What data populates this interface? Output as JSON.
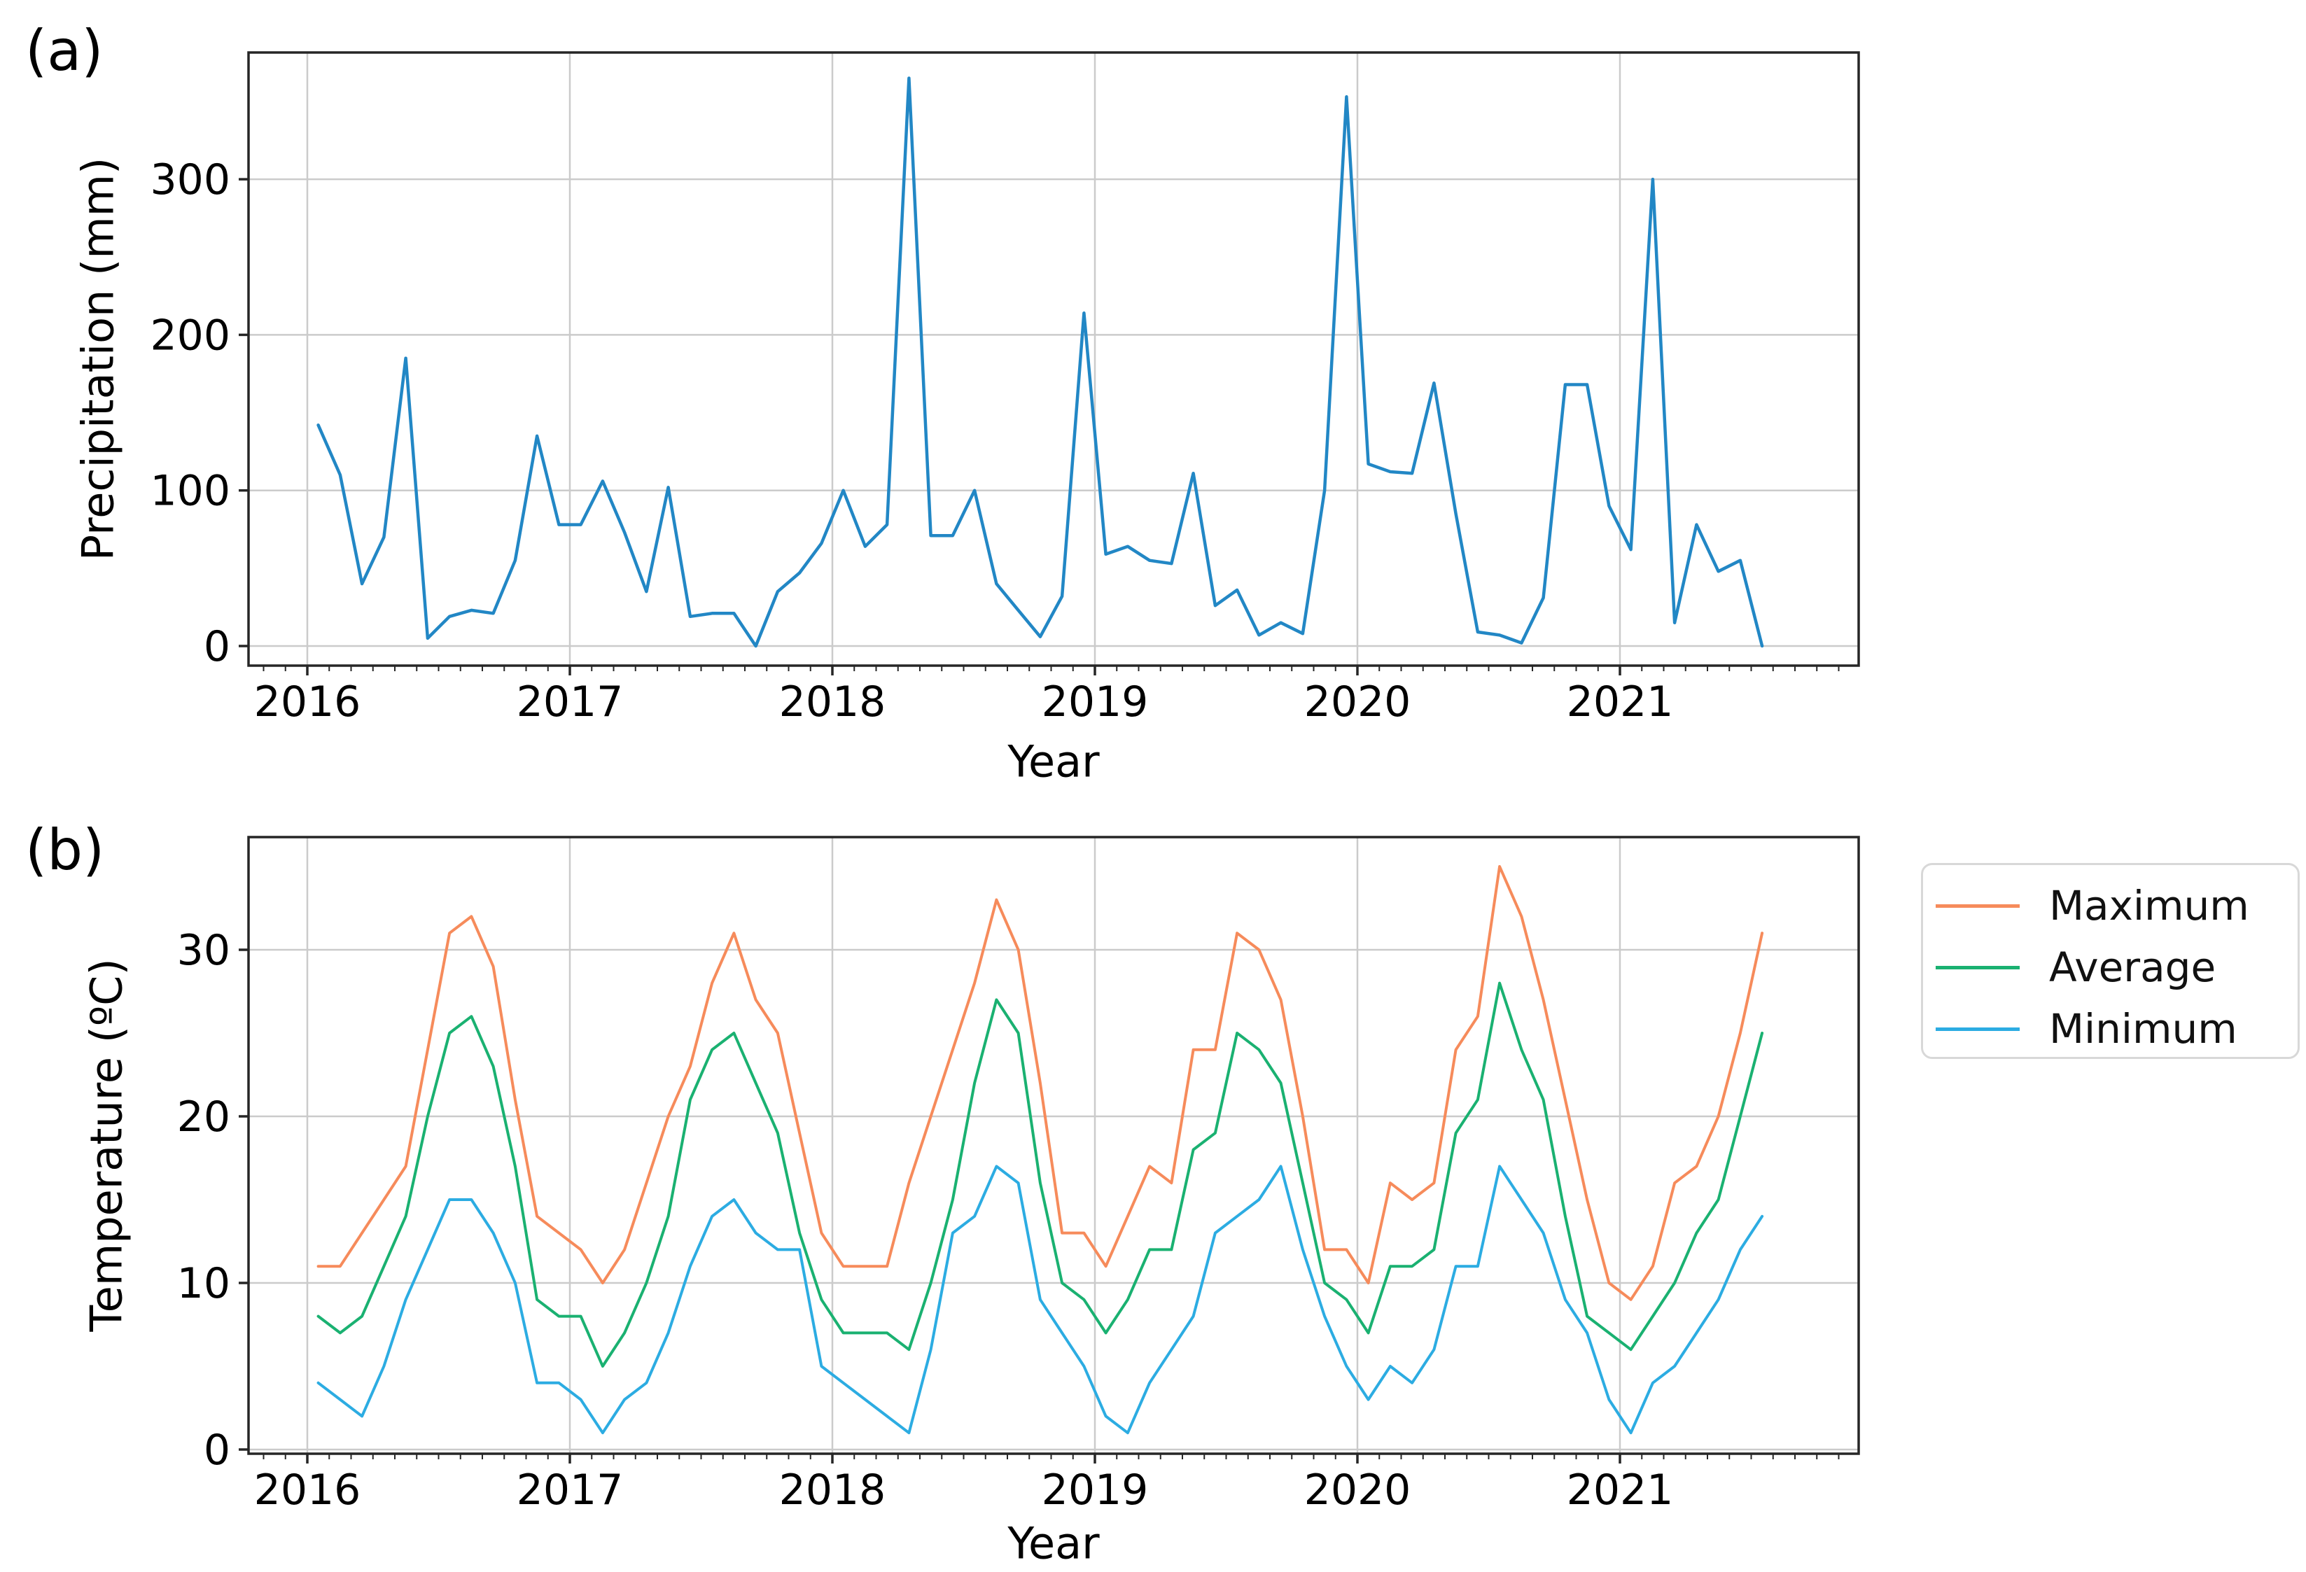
{
  "figure_type": "two-panel monthly climate time series, Jan 2016 - Jul 2021",
  "chart_data": [
    {
      "type": "line",
      "panel_label": "(a)",
      "xlabel": "Year",
      "ylabel": "Precipitation (mm)",
      "x_tick_labels": [
        "2016",
        "2017",
        "2018",
        "2019",
        "2020",
        "2021"
      ],
      "y_ticks": [
        0,
        100,
        200,
        300
      ],
      "ylim": [
        -12,
        382
      ],
      "xlim": [
        2015.776,
        2021.909
      ],
      "grid": true,
      "x_start_year": 2016,
      "points_per_year": 12,
      "legend_position": "none",
      "series": [
        {
          "name": "Precipitation",
          "color": "#2287c5",
          "values": [
            142,
            110,
            40,
            70,
            185,
            5,
            19,
            23,
            21,
            55,
            135,
            78,
            78,
            106,
            73,
            35,
            102,
            19,
            21,
            21,
            0,
            35,
            47,
            66,
            100,
            64,
            78,
            365,
            71,
            71,
            100,
            40,
            23,
            6,
            32,
            214,
            59,
            64,
            55,
            53,
            111,
            26,
            36,
            7,
            15,
            8,
            100,
            353,
            117,
            112,
            111,
            169,
            85,
            9,
            7,
            2,
            31,
            168,
            168,
            90,
            62,
            300,
            15,
            78,
            48,
            55,
            0
          ]
        }
      ]
    },
    {
      "type": "line",
      "panel_label": "(b)",
      "xlabel": "Year",
      "ylabel": "Temperature (ºC)",
      "x_tick_labels": [
        "2016",
        "2017",
        "2018",
        "2019",
        "2020",
        "2021"
      ],
      "y_ticks": [
        0,
        10,
        20,
        30
      ],
      "ylim": [
        -0.3,
        36.8
      ],
      "xlim": [
        2015.776,
        2021.909
      ],
      "grid": true,
      "x_start_year": 2016,
      "points_per_year": 12,
      "legend_position": "outside right top",
      "series": [
        {
          "name": "Maximum",
          "color": "#f68b5b",
          "values": [
            11,
            11,
            13,
            15,
            17,
            24,
            31,
            32,
            29,
            21,
            14,
            13,
            12,
            10,
            12,
            16,
            20,
            23,
            28,
            31,
            27,
            25,
            19,
            13,
            11,
            11,
            11,
            16,
            20,
            24,
            28,
            33,
            30,
            22,
            13,
            13,
            11,
            14,
            17,
            16,
            24,
            24,
            31,
            30,
            27,
            20,
            12,
            12,
            10,
            16,
            15,
            16,
            24,
            26,
            35,
            32,
            27,
            21,
            15,
            10,
            9,
            11,
            16,
            17,
            20,
            25,
            31
          ]
        },
        {
          "name": "Average",
          "color": "#1ab171",
          "values": [
            8,
            7,
            8,
            11,
            14,
            20,
            25,
            26,
            23,
            17,
            9,
            8,
            8,
            5,
            7,
            10,
            14,
            21,
            24,
            25,
            22,
            19,
            13,
            9,
            7,
            7,
            7,
            6,
            10,
            15,
            22,
            27,
            25,
            16,
            10,
            9,
            7,
            9,
            12,
            12,
            18,
            19,
            25,
            24,
            22,
            16,
            10,
            9,
            7,
            11,
            11,
            12,
            19,
            21,
            28,
            24,
            21,
            14,
            8,
            7,
            6,
            8,
            10,
            13,
            15,
            20,
            25
          ]
        },
        {
          "name": "Minimum",
          "color": "#2cace2",
          "values": [
            4,
            3,
            2,
            5,
            9,
            12,
            15,
            15,
            13,
            10,
            4,
            4,
            3,
            1,
            3,
            4,
            7,
            11,
            14,
            15,
            13,
            12,
            12,
            5,
            4,
            3,
            2,
            1,
            6,
            13,
            14,
            17,
            16,
            9,
            7,
            5,
            2,
            1,
            4,
            6,
            8,
            13,
            14,
            15,
            17,
            12,
            8,
            5,
            3,
            5,
            4,
            6,
            11,
            11,
            17,
            15,
            13,
            9,
            7,
            3,
            1,
            4,
            5,
            7,
            9,
            12,
            14
          ]
        }
      ]
    }
  ]
}
